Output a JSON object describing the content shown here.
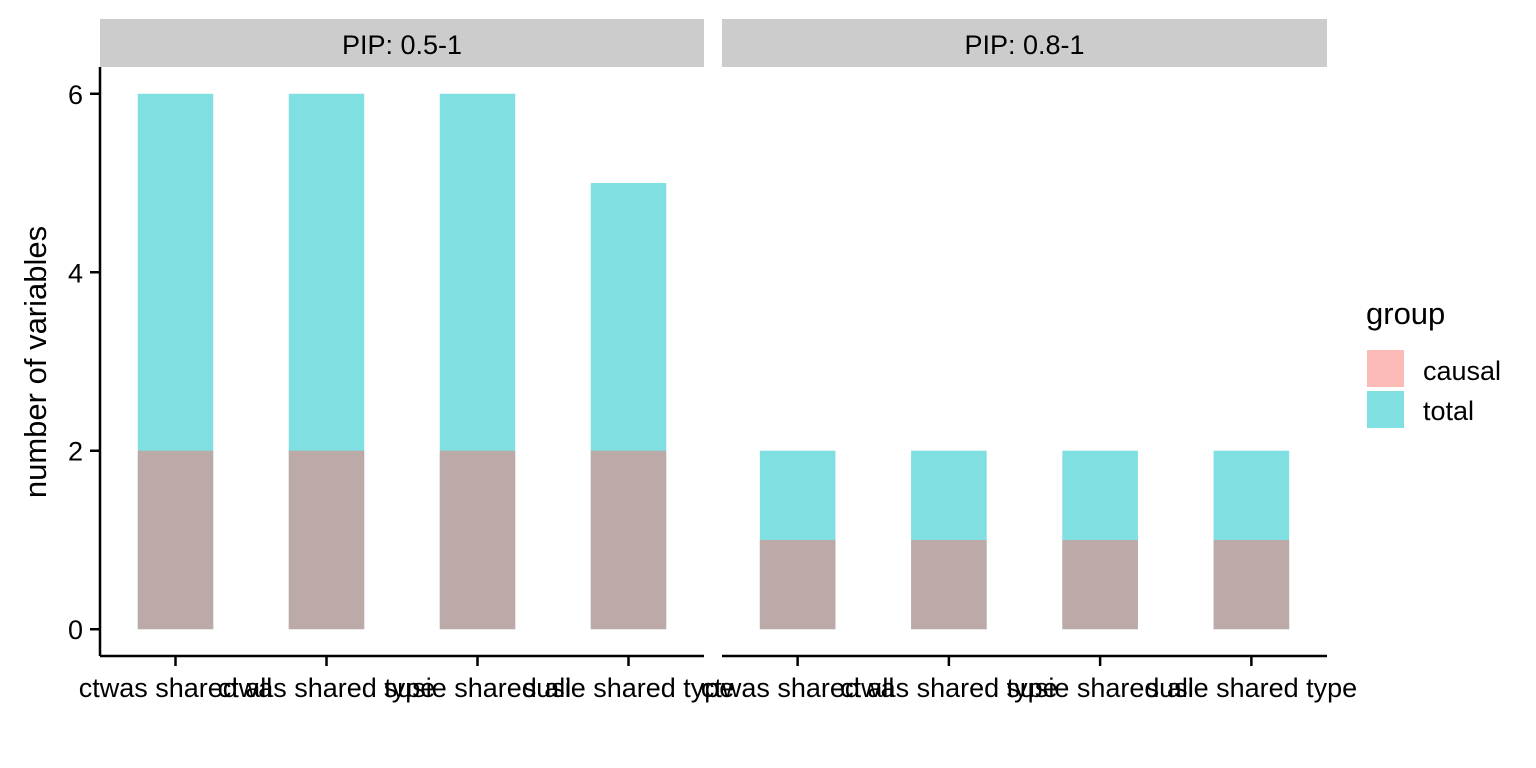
{
  "chart_data": {
    "type": "bar",
    "stacked": "overlaid",
    "ylabel": "number of variables",
    "ylim": [
      -0.3,
      6.3
    ],
    "yticks": [
      0,
      2,
      4,
      6
    ],
    "grid": false,
    "categories": [
      "ctwas shared all",
      "ctwas shared type",
      "susie shared all",
      "susie shared type"
    ],
    "legend": {
      "title": "group",
      "placement": "right",
      "entries": [
        "causal",
        "total"
      ]
    },
    "colors": {
      "causal": "#F8766D",
      "total": "#00BFC4",
      "panel_strip": "#CCCCCC"
    },
    "opacity": 0.5,
    "panels": [
      {
        "label": "PIP: 0.5-1",
        "series": [
          {
            "name": "total",
            "values": [
              6,
              6,
              6,
              5
            ]
          },
          {
            "name": "causal",
            "values": [
              2,
              2,
              2,
              2
            ]
          }
        ]
      },
      {
        "label": "PIP: 0.8-1",
        "series": [
          {
            "name": "total",
            "values": [
              2,
              2,
              2,
              2
            ]
          },
          {
            "name": "causal",
            "values": [
              1,
              1,
              1,
              1
            ]
          }
        ]
      }
    ]
  }
}
